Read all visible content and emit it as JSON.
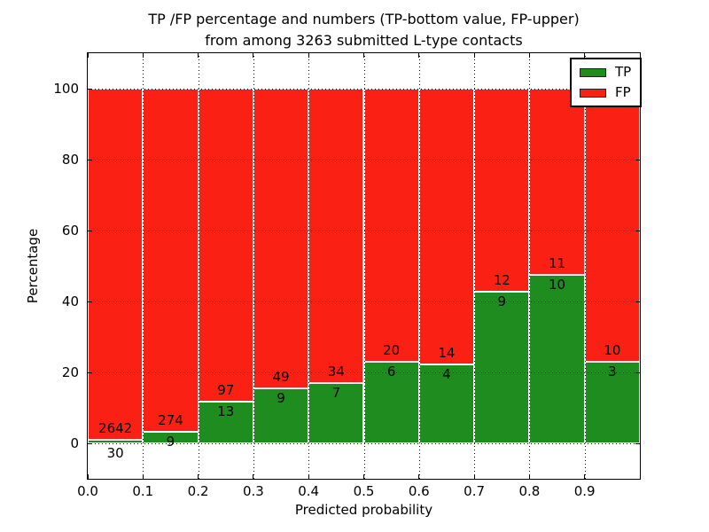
{
  "title": {
    "line1": "TP /FP percentage and numbers (TP-bottom value, FP-upper)",
    "line2": "from among 3263 submitted L-type contacts"
  },
  "chart_data": {
    "type": "bar",
    "stacked": true,
    "normalized_to_percent": 100,
    "title": "TP /FP percentage and numbers (TP-bottom value, FP-upper)\nfrom among 3263 submitted L-type contacts",
    "xlabel": "Predicted probability",
    "ylabel": "Percentage",
    "total_contacts": 3263,
    "bin_edges": [
      0.0,
      0.1,
      0.2,
      0.3,
      0.4,
      0.5,
      0.6,
      0.7,
      0.8,
      0.9,
      1.0
    ],
    "x_tick_labels": [
      "0.0",
      "0.1",
      "0.2",
      "0.3",
      "0.4",
      "0.5",
      "0.6",
      "0.7",
      "0.8",
      "0.9"
    ],
    "y_ticks": [
      0,
      20,
      40,
      60,
      80,
      100
    ],
    "xlim": [
      0,
      1
    ],
    "ylim": [
      -10,
      110
    ],
    "grid": {
      "style": "dotted",
      "color": "#000000",
      "on_top": true
    },
    "legend_position": "upper right",
    "series": [
      {
        "name": "TP",
        "color": "#1f8c1f",
        "counts": [
          30,
          9,
          13,
          9,
          7,
          6,
          4,
          9,
          10,
          3
        ]
      },
      {
        "name": "FP",
        "color": "#fa2014",
        "counts": [
          2642,
          274,
          97,
          49,
          34,
          20,
          14,
          12,
          11,
          10
        ]
      }
    ],
    "tp_percent_of_bin": [
      1.1,
      3.2,
      11.8,
      15.5,
      17.1,
      23.1,
      22.2,
      42.9,
      47.6,
      23.1
    ],
    "bar_label_rule": "FP count printed above segment boundary, TP count below"
  },
  "legend": {
    "items": [
      {
        "label": "TP",
        "color": "#1f8c1f"
      },
      {
        "label": "FP",
        "color": "#fa2014"
      }
    ]
  }
}
